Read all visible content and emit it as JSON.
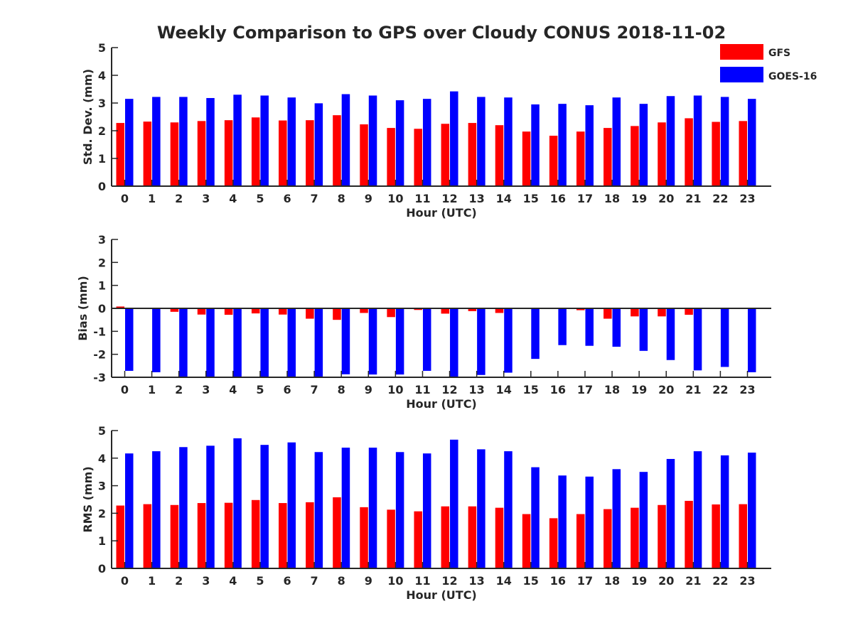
{
  "title": "Weekly Comparison to GPS over Cloudy CONUS 2018-11-02",
  "legend": [
    {
      "label": "GFS",
      "color": "#ff0000"
    },
    {
      "label": "GOES-16",
      "color": "#0000ff"
    }
  ],
  "chart_data": [
    {
      "type": "bar",
      "ylabel": "Std. Dev. (mm)",
      "xlabel": "Hour (UTC)",
      "ylim": [
        0,
        5
      ],
      "yticks": [
        0,
        1,
        2,
        3,
        4,
        5
      ],
      "categories": [
        "0",
        "1",
        "2",
        "3",
        "4",
        "5",
        "6",
        "7",
        "8",
        "9",
        "10",
        "11",
        "12",
        "13",
        "14",
        "15",
        "16",
        "17",
        "18",
        "19",
        "20",
        "21",
        "22",
        "23"
      ],
      "series": [
        {
          "name": "GFS",
          "color": "#ff0000",
          "values": [
            2.28,
            2.33,
            2.3,
            2.35,
            2.38,
            2.48,
            2.37,
            2.38,
            2.56,
            2.23,
            2.1,
            2.07,
            2.25,
            2.28,
            2.2,
            1.97,
            1.82,
            1.97,
            2.1,
            2.17,
            2.3,
            2.45,
            2.32,
            2.35
          ]
        },
        {
          "name": "GOES-16",
          "color": "#0000ff",
          "values": [
            3.15,
            3.22,
            3.22,
            3.18,
            3.3,
            3.27,
            3.2,
            2.99,
            3.32,
            3.27,
            3.1,
            3.15,
            3.42,
            3.22,
            3.2,
            2.95,
            2.97,
            2.92,
            3.2,
            2.97,
            3.25,
            3.27,
            3.22,
            3.15
          ]
        }
      ]
    },
    {
      "type": "bar",
      "ylabel": "Bias (mm)",
      "xlabel": "Hour (UTC)",
      "ylim": [
        -3,
        3
      ],
      "yticks": [
        -3,
        -2,
        -1,
        0,
        1,
        2,
        3
      ],
      "categories": [
        "0",
        "1",
        "2",
        "3",
        "4",
        "5",
        "6",
        "7",
        "8",
        "9",
        "10",
        "11",
        "12",
        "13",
        "14",
        "15",
        "16",
        "17",
        "18",
        "19",
        "20",
        "21",
        "22",
        "23"
      ],
      "series": [
        {
          "name": "GFS",
          "color": "#ff0000",
          "values": [
            0.08,
            -0.02,
            -0.15,
            -0.27,
            -0.28,
            -0.22,
            -0.27,
            -0.45,
            -0.5,
            -0.2,
            -0.38,
            -0.07,
            -0.23,
            -0.12,
            -0.2,
            0.0,
            0.03,
            -0.08,
            -0.45,
            -0.35,
            -0.35,
            -0.28,
            0.03,
            0.03
          ]
        },
        {
          "name": "GOES-16",
          "color": "#0000ff",
          "values": [
            -2.72,
            -2.78,
            -3.0,
            -3.0,
            -3.0,
            -3.0,
            -3.0,
            -3.0,
            -2.87,
            -2.88,
            -2.88,
            -2.72,
            -3.0,
            -2.9,
            -2.8,
            -2.2,
            -1.6,
            -1.63,
            -1.67,
            -1.85,
            -2.25,
            -2.7,
            -2.55,
            -2.78
          ]
        }
      ]
    },
    {
      "type": "bar",
      "ylabel": "RMS (mm)",
      "xlabel": "Hour (UTC)",
      "ylim": [
        0,
        5
      ],
      "yticks": [
        0,
        1,
        2,
        3,
        4,
        5
      ],
      "categories": [
        "0",
        "1",
        "2",
        "3",
        "4",
        "5",
        "6",
        "7",
        "8",
        "9",
        "10",
        "11",
        "12",
        "13",
        "14",
        "15",
        "16",
        "17",
        "18",
        "19",
        "20",
        "21",
        "22",
        "23"
      ],
      "series": [
        {
          "name": "GFS",
          "color": "#ff0000",
          "values": [
            2.28,
            2.33,
            2.3,
            2.37,
            2.38,
            2.48,
            2.37,
            2.4,
            2.58,
            2.22,
            2.13,
            2.07,
            2.25,
            2.25,
            2.2,
            1.97,
            1.82,
            1.97,
            2.15,
            2.2,
            2.3,
            2.45,
            2.32,
            2.33
          ]
        },
        {
          "name": "GOES-16",
          "color": "#0000ff",
          "values": [
            4.17,
            4.25,
            4.4,
            4.45,
            4.72,
            4.48,
            4.57,
            4.22,
            4.38,
            4.38,
            4.22,
            4.17,
            4.67,
            4.32,
            4.25,
            3.67,
            3.37,
            3.33,
            3.6,
            3.5,
            3.97,
            4.25,
            4.1,
            4.2
          ]
        }
      ]
    }
  ]
}
